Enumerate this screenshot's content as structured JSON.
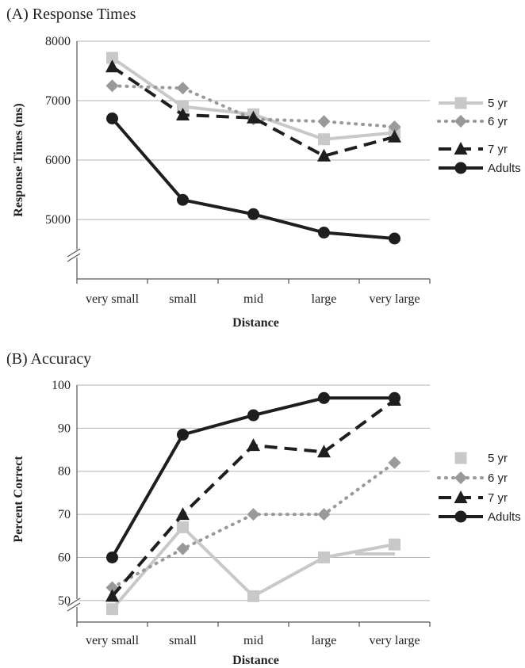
{
  "chart_data": [
    {
      "type": "line",
      "title": "(A) Response Times",
      "xlabel": "Distance",
      "ylabel": "Response Times (ms)",
      "categories": [
        "very small",
        "small",
        "mid",
        "large",
        "very large"
      ],
      "ylim": [
        4000,
        8000
      ],
      "yticks": [
        5000,
        6000,
        7000,
        8000
      ],
      "axis_break": true,
      "grid": true,
      "legend_position": "right",
      "series": [
        {
          "name": "5 yr",
          "values": [
            7720,
            6900,
            6770,
            6350,
            6460
          ],
          "color": "#c8c8c8",
          "dash": "solid",
          "marker": "square"
        },
        {
          "name": "6 yr",
          "values": [
            7250,
            7210,
            6690,
            6650,
            6560
          ],
          "color": "#999999",
          "dash": "dotted",
          "marker": "diamond"
        },
        {
          "name": "7 yr",
          "values": [
            7570,
            6760,
            6710,
            6070,
            6390
          ],
          "color": "#1e1e1e",
          "dash": "dashed",
          "marker": "triangle"
        },
        {
          "name": "Adults",
          "values": [
            6700,
            5330,
            5090,
            4780,
            4680
          ],
          "color": "#1e1e1e",
          "dash": "solid",
          "marker": "circle"
        }
      ]
    },
    {
      "type": "line",
      "title": "(B) Accuracy",
      "xlabel": "Distance",
      "ylabel": "Percent Correct",
      "categories": [
        "very small",
        "small",
        "mid",
        "large",
        "very large"
      ],
      "ylim": [
        45,
        100
      ],
      "yticks": [
        50,
        60,
        70,
        80,
        90,
        100
      ],
      "axis_break": true,
      "grid": true,
      "legend_position": "right",
      "series": [
        {
          "name": "5 yr",
          "values": [
            48,
            67,
            51,
            60,
            63
          ],
          "color": "#c8c8c8",
          "dash": "solid",
          "marker": "square"
        },
        {
          "name": "6 yr",
          "values": [
            53,
            62,
            70,
            70,
            82
          ],
          "color": "#999999",
          "dash": "dotted",
          "marker": "diamond"
        },
        {
          "name": "7 yr",
          "values": [
            51,
            70,
            86,
            84.5,
            96.5
          ],
          "color": "#1e1e1e",
          "dash": "dashed",
          "marker": "triangle"
        },
        {
          "name": "Adults",
          "values": [
            60,
            88.5,
            93,
            97,
            97
          ],
          "color": "#1e1e1e",
          "dash": "solid",
          "marker": "circle"
        }
      ]
    }
  ]
}
